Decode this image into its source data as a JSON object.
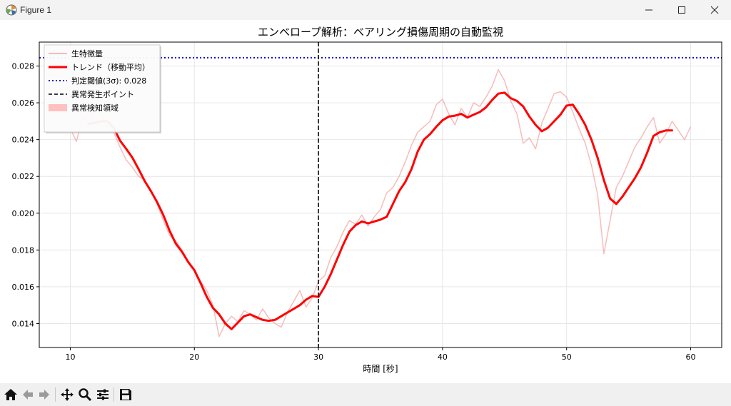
{
  "window": {
    "title": "Figure 1"
  },
  "toolbar": {
    "items": [
      "home-icon",
      "back-icon",
      "forward-icon",
      "pan-icon",
      "zoom-icon",
      "configure-subplots-icon",
      "save-icon"
    ]
  },
  "chart_data": {
    "type": "line",
    "title": "エンベロープ解析：ベアリング損傷周期の自動監視",
    "xlabel": "時間 [秒]",
    "ylabel": "",
    "xlim": [
      7.5,
      62.5
    ],
    "ylim": [
      0.0127,
      0.0293
    ],
    "xticks": [
      "10",
      "20",
      "30",
      "40",
      "50",
      "60"
    ],
    "yticks": [
      "0.014",
      "0.016",
      "0.018",
      "0.020",
      "0.022",
      "0.024",
      "0.026",
      "0.028"
    ],
    "grid": true,
    "legend_position": "upper-left",
    "legend": [
      {
        "label": "生特徴量",
        "style": "raw-line"
      },
      {
        "label": "トレンド（移動平均）",
        "style": "trend-line"
      },
      {
        "label": "判定閾値(3σ): 0.028",
        "style": "threshold-line"
      },
      {
        "label": "異常発生ポイント",
        "style": "event-line"
      },
      {
        "label": "異常検知領域",
        "style": "region-patch"
      }
    ],
    "colors": {
      "raw": "#f4a6a6",
      "trend": "#ff0000",
      "threshold": "#0000cc",
      "event": "#000000",
      "region": "#ffc0c0"
    },
    "threshold": 0.02845,
    "event_x": 30,
    "series": [
      {
        "name": "生特徴量",
        "x": [
          10.0,
          10.5,
          11.0,
          11.5,
          12.0,
          12.5,
          13.0,
          13.5,
          14.0,
          14.5,
          15.0,
          15.5,
          16.0,
          16.5,
          17.0,
          17.5,
          18.0,
          18.5,
          19.0,
          19.5,
          20.0,
          20.5,
          21.0,
          21.5,
          22.0,
          22.5,
          23.0,
          23.5,
          24.0,
          24.5,
          25.0,
          25.5,
          26.0,
          26.5,
          27.0,
          27.5,
          28.0,
          28.5,
          29.0,
          29.5,
          30.0,
          30.5,
          31.0,
          31.5,
          32.0,
          32.5,
          33.0,
          33.5,
          34.0,
          34.5,
          35.0,
          35.5,
          36.0,
          36.5,
          37.0,
          37.5,
          38.0,
          38.5,
          39.0,
          39.5,
          40.0,
          40.5,
          41.0,
          41.5,
          42.0,
          42.5,
          43.0,
          43.5,
          44.0,
          44.5,
          45.0,
          45.5,
          46.0,
          46.5,
          47.0,
          47.5,
          48.0,
          48.5,
          49.0,
          49.5,
          50.0,
          50.5,
          51.0,
          51.5,
          52.0,
          52.5,
          53.0,
          53.5,
          54.0,
          54.5,
          55.0,
          55.5,
          56.0,
          56.5,
          57.0,
          57.5,
          58.0,
          58.5,
          59.0,
          59.5,
          60.0
        ],
        "values": [
          0.0246,
          0.0239,
          0.0252,
          0.0248,
          0.0258,
          0.0253,
          0.0247,
          0.0244,
          0.0236,
          0.0229,
          0.0225,
          0.022,
          0.0218,
          0.0212,
          0.0205,
          0.0196,
          0.0188,
          0.0185,
          0.018,
          0.0174,
          0.0169,
          0.0163,
          0.0158,
          0.015,
          0.0133,
          0.014,
          0.0144,
          0.0141,
          0.0147,
          0.0145,
          0.0142,
          0.0148,
          0.0143,
          0.014,
          0.0138,
          0.0146,
          0.0152,
          0.0158,
          0.0149,
          0.0154,
          0.0163,
          0.0166,
          0.0176,
          0.0182,
          0.019,
          0.0196,
          0.0194,
          0.0199,
          0.0193,
          0.0198,
          0.0202,
          0.0211,
          0.0214,
          0.022,
          0.0228,
          0.0237,
          0.0244,
          0.0247,
          0.025,
          0.0259,
          0.0262,
          0.0254,
          0.0248,
          0.0257,
          0.0252,
          0.026,
          0.0258,
          0.0263,
          0.0269,
          0.0278,
          0.0272,
          0.0261,
          0.0254,
          0.0238,
          0.0241,
          0.0235,
          0.0249,
          0.0257,
          0.0265,
          0.0266,
          0.0263,
          0.0255,
          0.0246,
          0.0238,
          0.0226,
          0.021,
          0.0178,
          0.0196,
          0.0214,
          0.022,
          0.0228,
          0.0236,
          0.0241,
          0.0247,
          0.0252,
          0.0238,
          0.0243,
          0.025,
          0.0245,
          0.024,
          0.0247
        ]
      },
      {
        "name": "トレンド（移動平均）",
        "x": [
          11.5,
          12.0,
          12.5,
          13.0,
          13.5,
          14.0,
          14.5,
          15.0,
          15.5,
          16.0,
          16.5,
          17.0,
          17.5,
          18.0,
          18.5,
          19.0,
          19.5,
          20.0,
          20.5,
          21.0,
          21.5,
          22.0,
          22.5,
          23.0,
          23.5,
          24.0,
          24.5,
          25.0,
          25.5,
          26.0,
          26.5,
          27.0,
          27.5,
          28.0,
          28.5,
          29.0,
          29.5,
          30.0,
          30.5,
          31.0,
          31.5,
          32.0,
          32.5,
          33.0,
          33.5,
          34.0,
          34.5,
          35.0,
          35.5,
          36.0,
          36.5,
          37.0,
          37.5,
          38.0,
          38.5,
          39.0,
          39.5,
          40.0,
          40.5,
          41.0,
          41.5,
          42.0,
          42.5,
          43.0,
          43.5,
          44.0,
          44.5,
          45.0,
          45.5,
          46.0,
          46.5,
          47.0,
          47.5,
          48.0,
          48.5,
          49.0,
          49.5,
          50.0,
          50.5,
          51.0,
          51.5,
          52.0,
          52.5,
          53.0,
          53.5,
          54.0,
          54.5,
          55.0,
          55.5,
          56.0,
          56.5,
          57.0,
          57.5,
          58.0,
          58.5
        ],
        "values": [
          0.02485,
          0.02492,
          0.025,
          0.025,
          0.02465,
          0.02395,
          0.0235,
          0.02302,
          0.0224,
          0.02175,
          0.0212,
          0.0206,
          0.0199,
          0.01905,
          0.01835,
          0.0179,
          0.01735,
          0.0169,
          0.0162,
          0.01545,
          0.01485,
          0.0145,
          0.014,
          0.0137,
          0.01405,
          0.0144,
          0.0145,
          0.01435,
          0.0142,
          0.01415,
          0.0142,
          0.0144,
          0.0146,
          0.0148,
          0.015,
          0.0153,
          0.0155,
          0.01545,
          0.016,
          0.0167,
          0.0175,
          0.0183,
          0.019,
          0.01935,
          0.01955,
          0.01945,
          0.01955,
          0.01965,
          0.0198,
          0.0205,
          0.0212,
          0.0217,
          0.0224,
          0.02335,
          0.024,
          0.0243,
          0.0247,
          0.02505,
          0.02525,
          0.0253,
          0.0254,
          0.0252,
          0.02535,
          0.0255,
          0.02575,
          0.02615,
          0.0265,
          0.02655,
          0.02625,
          0.0261,
          0.0258,
          0.02525,
          0.0248,
          0.02445,
          0.02465,
          0.025,
          0.02535,
          0.02585,
          0.0259,
          0.0254,
          0.0248,
          0.024,
          0.023,
          0.0218,
          0.0208,
          0.0205,
          0.0209,
          0.0214,
          0.0219,
          0.0225,
          0.0233,
          0.0242,
          0.0244,
          0.0245,
          0.0245
        ]
      }
    ]
  }
}
